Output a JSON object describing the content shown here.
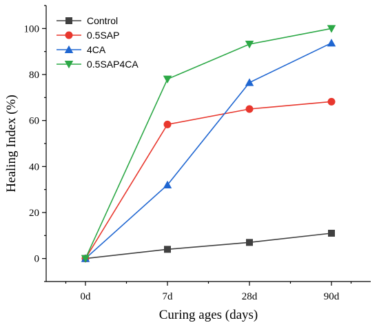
{
  "chart_data": {
    "type": "line",
    "categories": [
      "0d",
      "7d",
      "28d",
      "90d"
    ],
    "xlabel": "Curing ages (days)",
    "ylabel": "Healing Index (%)",
    "ylim": [
      -10,
      110
    ],
    "yticks": [
      0,
      20,
      40,
      60,
      80,
      100
    ],
    "legend_position": "top-left",
    "grid": false,
    "series": [
      {
        "name": "Control",
        "color": "#404040",
        "marker": "square",
        "values": [
          0,
          4,
          7,
          11
        ]
      },
      {
        "name": "0.5SAP",
        "color": "#e8372d",
        "marker": "circle",
        "values": [
          0,
          58.3,
          65,
          68.2
        ]
      },
      {
        "name": "4CA",
        "color": "#1f66d1",
        "marker": "triangle-up",
        "values": [
          0,
          32,
          76.5,
          93.7
        ]
      },
      {
        "name": "0.5SAP4CA",
        "color": "#2ca846",
        "marker": "triangle-down",
        "values": [
          0,
          78,
          93.2,
          100
        ]
      }
    ]
  }
}
